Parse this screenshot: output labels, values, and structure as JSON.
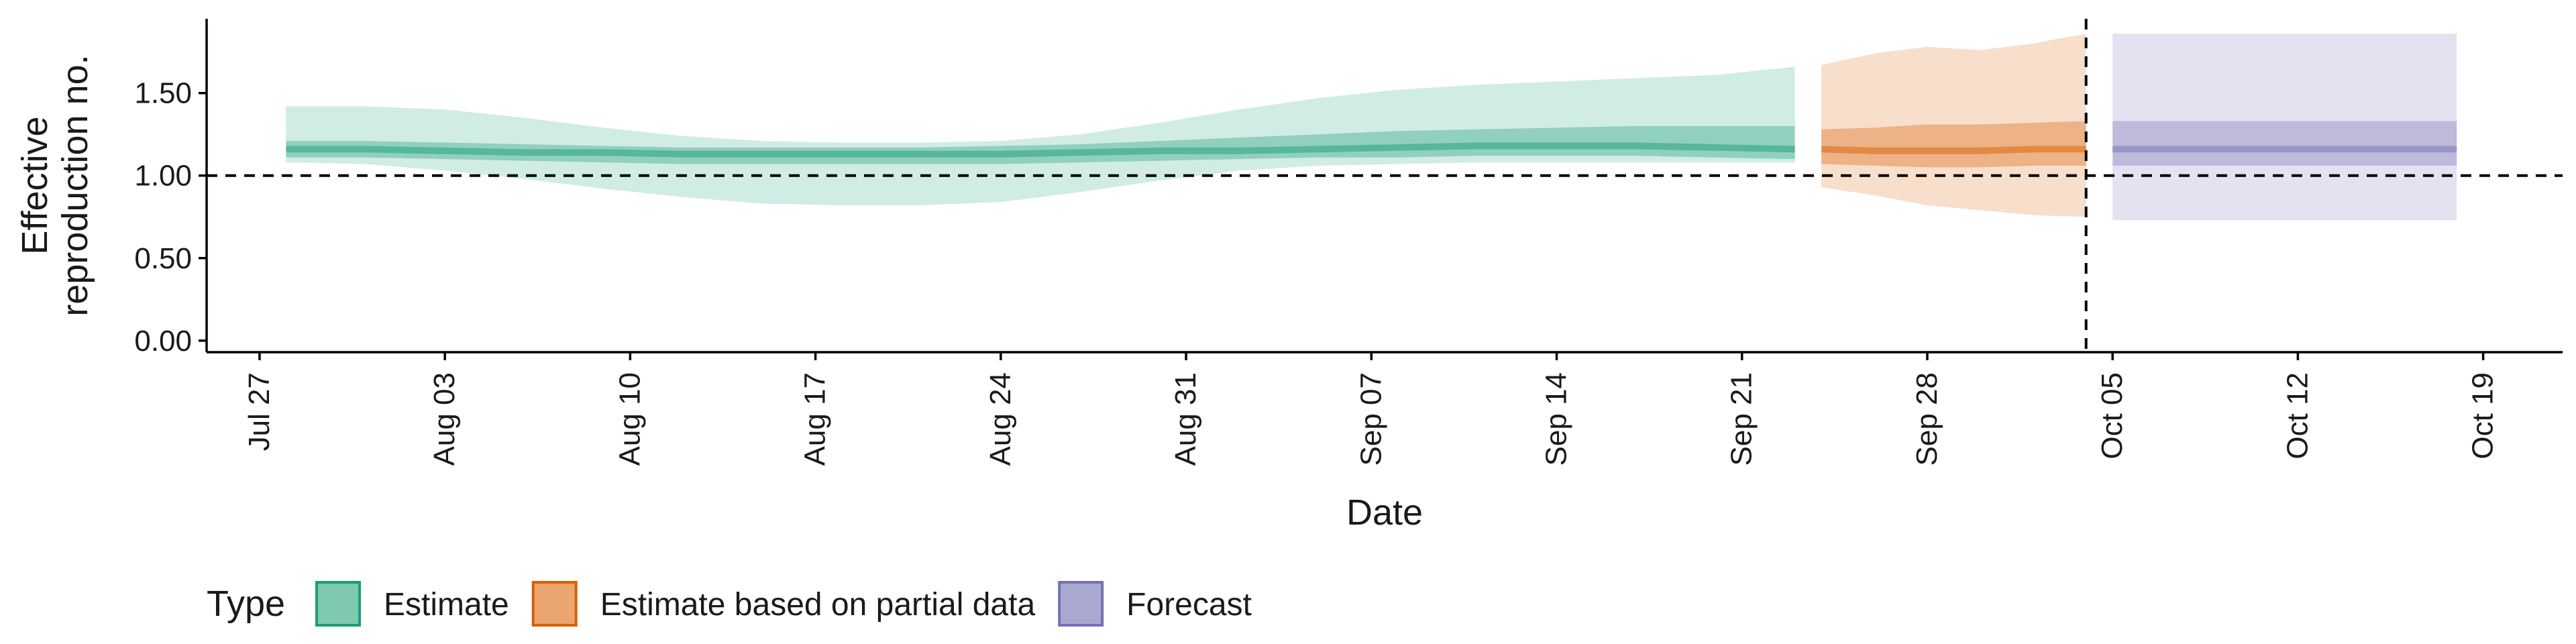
{
  "chart_data": {
    "type": "area",
    "title": "",
    "xlabel": "Date",
    "ylabel": [
      "Effective",
      "reproduction no."
    ],
    "ylim": [
      -0.07,
      1.95
    ],
    "xlim": [
      "2020-07-25",
      "2020-10-22"
    ],
    "yticks": [
      0.0,
      0.5,
      1.0,
      1.5
    ],
    "ytick_labels": [
      "0.00",
      "0.50",
      "1.00",
      "1.50"
    ],
    "xticks": [
      "2020-07-27",
      "2020-08-03",
      "2020-08-10",
      "2020-08-17",
      "2020-08-24",
      "2020-08-31",
      "2020-09-07",
      "2020-09-14",
      "2020-09-21",
      "2020-09-28",
      "2020-10-05",
      "2020-10-12",
      "2020-10-19"
    ],
    "xtick_labels": [
      "Jul 27",
      "Aug 03",
      "Aug 10",
      "Aug 17",
      "Aug 24",
      "Aug 31",
      "Sep 07",
      "Sep 14",
      "Sep 21",
      "Sep 28",
      "Oct 05",
      "Oct 12",
      "Oct 19"
    ],
    "reference_hline": 1.0,
    "forecast_date_vline": "2020-10-04",
    "grid": false,
    "legend": {
      "title": "Type",
      "placement": "bottom",
      "entries": [
        {
          "label": "Estimate",
          "fill": "#7fc9af",
          "stroke": "#1b9e77"
        },
        {
          "label": "Estimate based on partial data",
          "fill": "#eba56e",
          "stroke": "#d95f02"
        },
        {
          "label": "Forecast",
          "fill": "#aaa8d0",
          "stroke": "#7570b3"
        }
      ]
    },
    "series": [
      {
        "name": "Estimate",
        "color": "#1b9e77",
        "x": [
          "2020-07-28",
          "2020-07-31",
          "2020-08-03",
          "2020-08-06",
          "2020-08-09",
          "2020-08-12",
          "2020-08-15",
          "2020-08-18",
          "2020-08-21",
          "2020-08-24",
          "2020-08-27",
          "2020-08-30",
          "2020-09-02",
          "2020-09-05",
          "2020-09-08",
          "2020-09-11",
          "2020-09-14",
          "2020-09-17",
          "2020-09-20",
          "2020-09-23"
        ],
        "median": [
          1.16,
          1.16,
          1.15,
          1.14,
          1.14,
          1.13,
          1.13,
          1.13,
          1.13,
          1.13,
          1.14,
          1.15,
          1.15,
          1.16,
          1.17,
          1.18,
          1.18,
          1.18,
          1.17,
          1.16
        ],
        "lower_90": [
          1.08,
          1.07,
          1.03,
          0.98,
          0.92,
          0.87,
          0.83,
          0.82,
          0.82,
          0.84,
          0.9,
          0.97,
          1.03,
          1.06,
          1.07,
          1.08,
          1.08,
          1.08,
          1.08,
          1.08
        ],
        "upper_90": [
          1.42,
          1.42,
          1.4,
          1.35,
          1.29,
          1.24,
          1.21,
          1.2,
          1.2,
          1.21,
          1.25,
          1.32,
          1.4,
          1.47,
          1.52,
          1.55,
          1.57,
          1.59,
          1.61,
          1.66
        ],
        "lower_50": [
          1.11,
          1.11,
          1.1,
          1.09,
          1.08,
          1.07,
          1.07,
          1.07,
          1.07,
          1.07,
          1.08,
          1.09,
          1.1,
          1.11,
          1.11,
          1.12,
          1.12,
          1.12,
          1.11,
          1.1
        ],
        "upper_50": [
          1.21,
          1.21,
          1.2,
          1.19,
          1.18,
          1.17,
          1.17,
          1.17,
          1.17,
          1.18,
          1.19,
          1.21,
          1.23,
          1.25,
          1.27,
          1.28,
          1.29,
          1.3,
          1.3,
          1.3
        ]
      },
      {
        "name": "Estimate based on partial data",
        "color": "#d95f02",
        "x": [
          "2020-09-24",
          "2020-09-26",
          "2020-09-28",
          "2020-09-30",
          "2020-10-02",
          "2020-10-04"
        ],
        "median": [
          1.16,
          1.15,
          1.15,
          1.15,
          1.16,
          1.16
        ],
        "lower_90": [
          0.93,
          0.88,
          0.82,
          0.79,
          0.76,
          0.75
        ],
        "upper_90": [
          1.67,
          1.74,
          1.78,
          1.76,
          1.8,
          1.86
        ],
        "lower_50": [
          1.07,
          1.06,
          1.05,
          1.05,
          1.06,
          1.06
        ],
        "upper_50": [
          1.28,
          1.29,
          1.31,
          1.31,
          1.32,
          1.33
        ]
      },
      {
        "name": "Forecast",
        "color": "#7570b3",
        "x": [
          "2020-10-05",
          "2020-10-18"
        ],
        "median": [
          1.16,
          1.16
        ],
        "lower_90": [
          0.73,
          0.73
        ],
        "upper_90": [
          1.86,
          1.86
        ],
        "lower_50": [
          1.06,
          1.06
        ],
        "upper_50": [
          1.33,
          1.33
        ]
      }
    ]
  }
}
